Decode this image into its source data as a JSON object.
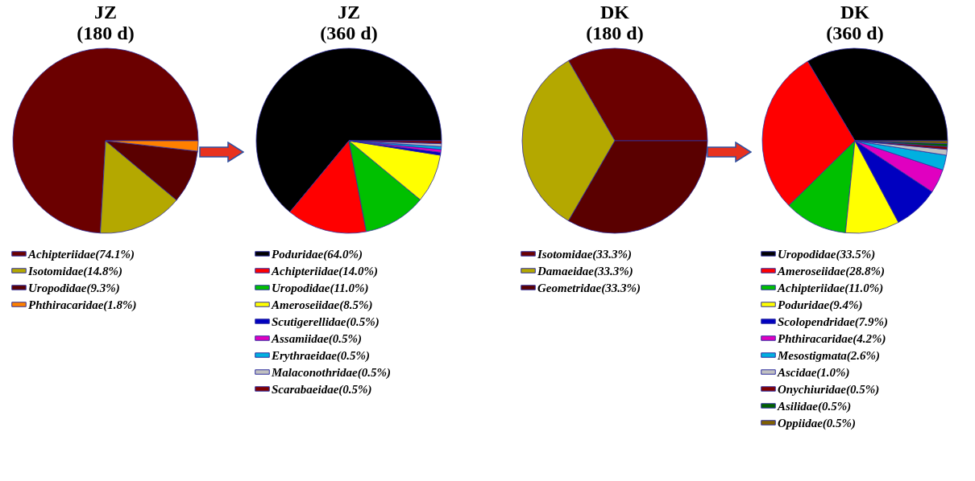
{
  "chart_data": [
    {
      "type": "pie",
      "title": "JZ\n(180 d)",
      "legend": "bottom",
      "categories": [
        "Achipteriidae(74.1%)",
        "Isotomidae(14.8%)",
        "Uropodidae(9.3%)",
        "Phthiracaridae(1.8%)"
      ],
      "values": [
        74.1,
        14.8,
        9.3,
        1.8
      ],
      "colors": [
        "#6b0000",
        "#b4a800",
        "#5a0000",
        "#ff8000"
      ]
    },
    {
      "type": "pie",
      "title": "JZ\n(360 d)",
      "legend": "bottom",
      "categories": [
        "Poduridae(64.0%)",
        "Achipteriidae(14.0%)",
        "Uropodidae(11.0%)",
        "Ameroseiidae(8.5%)",
        "Scutigerellidae(0.5%)",
        "Assamiidae(0.5%)",
        "Erythraeidae(0.5%)",
        "Malaconothridae(0.5%)",
        "Scarabaeidae(0.5%)"
      ],
      "values": [
        64.0,
        14.0,
        11.0,
        8.5,
        0.5,
        0.5,
        0.5,
        0.5,
        0.5
      ],
      "colors": [
        "#000000",
        "#ff0000",
        "#00c000",
        "#ffff00",
        "#0000c0",
        "#e000c0",
        "#00b0e0",
        "#c0c0c0",
        "#800000"
      ]
    },
    {
      "type": "pie",
      "title": "DK\n(180 d)",
      "legend": "bottom",
      "categories": [
        "Isotomidae(33.3%)",
        "Damaeidae(33.3%)",
        "Geometridae(33.3%)"
      ],
      "values": [
        33.3,
        33.3,
        33.3
      ],
      "colors": [
        "#6b0000",
        "#b4a800",
        "#5a0000"
      ]
    },
    {
      "type": "pie",
      "title": "DK\n(360 d)",
      "legend": "bottom",
      "categories": [
        "Uropodidae(33.5%)",
        "Ameroseiidae(28.8%)",
        "Achipteriidae(11.0%)",
        "Poduridae(9.4%)",
        "Scolopendridae(7.9%)",
        "Phthiracaridae(4.2%)",
        "Mesostigmata(2.6%)",
        "Ascidae(1.0%)",
        "Onychiuridae(0.5%)",
        "Asilidae(0.5%)",
        "Oppiidae(0.5%)"
      ],
      "values": [
        33.5,
        28.8,
        11.0,
        9.4,
        7.9,
        4.2,
        2.6,
        1.0,
        0.5,
        0.5,
        0.5
      ],
      "colors": [
        "#000000",
        "#ff0000",
        "#00c000",
        "#ffff00",
        "#0000c0",
        "#e000c0",
        "#00b0e0",
        "#c0c0c0",
        "#800000",
        "#006000",
        "#806000"
      ]
    }
  ]
}
